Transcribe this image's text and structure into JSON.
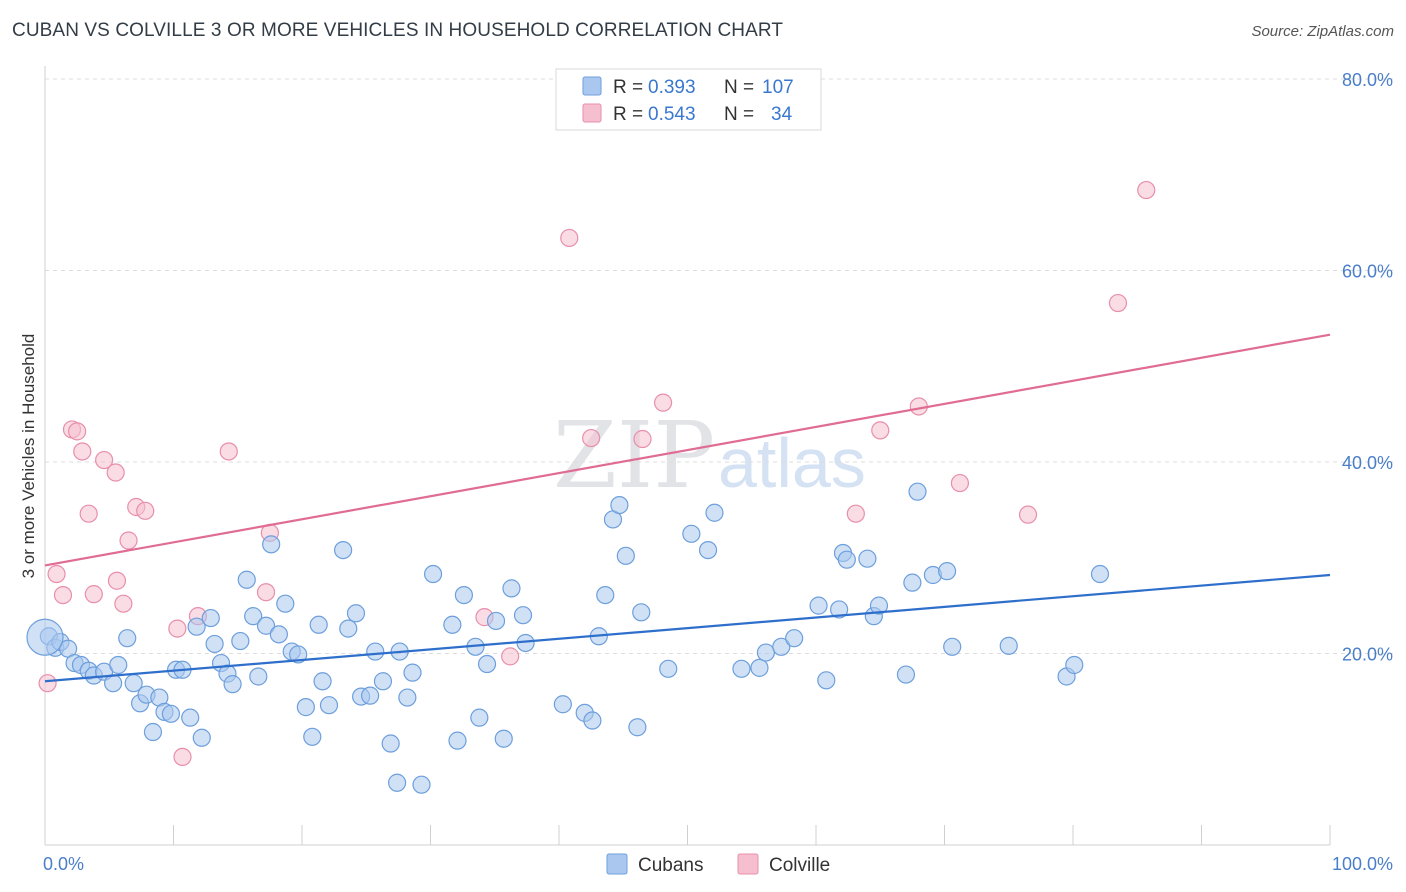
{
  "title": "CUBAN VS COLVILLE 3 OR MORE VEHICLES IN HOUSEHOLD CORRELATION CHART",
  "source": "Source: ZipAtlas.com",
  "watermark": {
    "zip": "ZIP",
    "atlas": "atlas"
  },
  "colors": {
    "cubans_fill": "#aac8ef",
    "cubans_stroke": "#6d9fdc",
    "cubans_line": "#2f6fcc",
    "colville_fill": "#f6bfd0",
    "colville_stroke": "#e88fab",
    "colville_line": "#e06c94",
    "grid": "#dcdcdc",
    "tick_text": "#4a7ec9"
  },
  "legend": {
    "rows": [
      {
        "r_label": "R =",
        "r_value": "0.393",
        "n_label": "N =",
        "n_value": "107"
      },
      {
        "r_label": "R =",
        "r_value": "0.543",
        "n_label": "N =",
        "n_value": "34"
      }
    ]
  },
  "bottom_legend": [
    "Cubans",
    "Colville"
  ],
  "chart_data": {
    "type": "scatter",
    "title": "CUBAN VS COLVILLE 3 OR MORE VEHICLES IN HOUSEHOLD CORRELATION CHART",
    "xlabel": "",
    "ylabel": "3 or more Vehicles in Household",
    "xlim": [
      0,
      100
    ],
    "ylim": [
      0,
      80
    ],
    "x_tick_labels": [
      "0.0%",
      "100.0%"
    ],
    "y_tick_labels": [
      "20.0%",
      "40.0%",
      "60.0%",
      "80.0%"
    ],
    "y_ticks": [
      20,
      40,
      60,
      80
    ],
    "grid": true,
    "legend_position": "top-center",
    "series": [
      {
        "name": "Cubans",
        "r": 0.393,
        "n": 107,
        "trend": {
          "x": [
            0,
            100
          ],
          "y": [
            17.1,
            28.2
          ]
        },
        "points": [
          [
            0.3,
            21.8
          ],
          [
            0.8,
            20.6
          ],
          [
            1.2,
            21.2
          ],
          [
            1.8,
            20.5
          ],
          [
            2.3,
            19.0
          ],
          [
            2.8,
            18.8
          ],
          [
            3.4,
            18.2
          ],
          [
            3.8,
            17.7
          ],
          [
            4.6,
            18.1
          ],
          [
            5.3,
            16.9
          ],
          [
            5.7,
            18.8
          ],
          [
            6.4,
            21.6
          ],
          [
            6.9,
            16.9
          ],
          [
            7.4,
            14.8
          ],
          [
            7.9,
            15.7
          ],
          [
            8.4,
            11.8
          ],
          [
            8.9,
            15.4
          ],
          [
            9.3,
            13.9
          ],
          [
            9.8,
            13.7
          ],
          [
            10.2,
            18.3
          ],
          [
            10.7,
            18.3
          ],
          [
            11.3,
            13.3
          ],
          [
            11.8,
            22.8
          ],
          [
            12.2,
            11.2
          ],
          [
            12.9,
            23.7
          ],
          [
            13.2,
            21.0
          ],
          [
            13.7,
            19.0
          ],
          [
            14.2,
            17.9
          ],
          [
            14.6,
            16.8
          ],
          [
            15.2,
            21.3
          ],
          [
            15.7,
            27.7
          ],
          [
            16.2,
            23.9
          ],
          [
            16.6,
            17.6
          ],
          [
            17.2,
            22.9
          ],
          [
            17.6,
            31.4
          ],
          [
            18.2,
            22.0
          ],
          [
            18.7,
            25.2
          ],
          [
            19.2,
            20.2
          ],
          [
            19.7,
            19.9
          ],
          [
            20.3,
            14.4
          ],
          [
            20.8,
            11.3
          ],
          [
            21.3,
            23.0
          ],
          [
            21.6,
            17.1
          ],
          [
            22.1,
            14.6
          ],
          [
            23.2,
            30.8
          ],
          [
            23.6,
            22.6
          ],
          [
            24.2,
            24.2
          ],
          [
            24.6,
            15.5
          ],
          [
            25.3,
            15.6
          ],
          [
            25.7,
            20.2
          ],
          [
            26.3,
            17.1
          ],
          [
            26.9,
            10.6
          ],
          [
            27.4,
            6.5
          ],
          [
            27.6,
            20.2
          ],
          [
            28.2,
            15.4
          ],
          [
            28.6,
            18.0
          ],
          [
            29.3,
            6.3
          ],
          [
            30.2,
            28.3
          ],
          [
            31.7,
            23.0
          ],
          [
            32.1,
            10.9
          ],
          [
            32.6,
            26.1
          ],
          [
            33.5,
            20.7
          ],
          [
            33.8,
            13.3
          ],
          [
            34.4,
            18.9
          ],
          [
            35.1,
            23.4
          ],
          [
            35.7,
            11.1
          ],
          [
            36.3,
            26.8
          ],
          [
            37.2,
            24.0
          ],
          [
            37.4,
            21.1
          ],
          [
            40.3,
            14.7
          ],
          [
            42.0,
            13.8
          ],
          [
            42.6,
            13.0
          ],
          [
            43.1,
            21.8
          ],
          [
            43.6,
            26.1
          ],
          [
            44.2,
            34.0
          ],
          [
            44.7,
            35.5
          ],
          [
            45.2,
            30.2
          ],
          [
            46.1,
            12.3
          ],
          [
            46.4,
            24.3
          ],
          [
            48.5,
            18.4
          ],
          [
            50.3,
            32.5
          ],
          [
            51.6,
            30.8
          ],
          [
            52.1,
            34.7
          ],
          [
            54.2,
            18.4
          ],
          [
            55.6,
            18.5
          ],
          [
            56.1,
            20.1
          ],
          [
            57.3,
            20.7
          ],
          [
            58.3,
            21.6
          ],
          [
            60.2,
            25.0
          ],
          [
            60.8,
            17.2
          ],
          [
            61.8,
            24.6
          ],
          [
            62.1,
            30.5
          ],
          [
            62.4,
            29.8
          ],
          [
            64.0,
            29.9
          ],
          [
            64.5,
            23.9
          ],
          [
            64.9,
            25.0
          ],
          [
            67.0,
            17.8
          ],
          [
            67.5,
            27.4
          ],
          [
            67.9,
            36.9
          ],
          [
            69.1,
            28.2
          ],
          [
            70.2,
            28.6
          ],
          [
            70.6,
            20.7
          ],
          [
            75.0,
            20.8
          ],
          [
            79.5,
            17.6
          ],
          [
            80.1,
            18.8
          ],
          [
            82.1,
            28.3
          ],
          [
            0.0,
            21.7
          ]
        ]
      },
      {
        "name": "Colville",
        "r": 0.543,
        "n": 34,
        "trend": {
          "x": [
            0,
            100
          ],
          "y": [
            29.2,
            53.3
          ]
        },
        "points": [
          [
            0.2,
            16.9
          ],
          [
            0.9,
            28.3
          ],
          [
            1.4,
            26.1
          ],
          [
            2.1,
            43.4
          ],
          [
            2.5,
            43.2
          ],
          [
            2.9,
            41.1
          ],
          [
            3.4,
            34.6
          ],
          [
            3.8,
            26.2
          ],
          [
            4.6,
            40.2
          ],
          [
            5.5,
            38.9
          ],
          [
            5.6,
            27.6
          ],
          [
            6.1,
            25.2
          ],
          [
            6.5,
            31.8
          ],
          [
            7.1,
            35.3
          ],
          [
            7.8,
            34.9
          ],
          [
            10.3,
            22.6
          ],
          [
            10.7,
            9.2
          ],
          [
            11.9,
            23.9
          ],
          [
            14.3,
            41.1
          ],
          [
            17.2,
            26.4
          ],
          [
            17.5,
            32.6
          ],
          [
            34.2,
            23.8
          ],
          [
            36.2,
            19.7
          ],
          [
            40.8,
            63.4
          ],
          [
            42.5,
            42.5
          ],
          [
            46.5,
            42.4
          ],
          [
            48.1,
            46.2
          ],
          [
            63.1,
            34.6
          ],
          [
            65.0,
            43.3
          ],
          [
            68.0,
            45.8
          ],
          [
            71.2,
            37.8
          ],
          [
            76.5,
            34.5
          ],
          [
            83.5,
            56.6
          ],
          [
            85.7,
            68.4
          ]
        ]
      }
    ]
  }
}
